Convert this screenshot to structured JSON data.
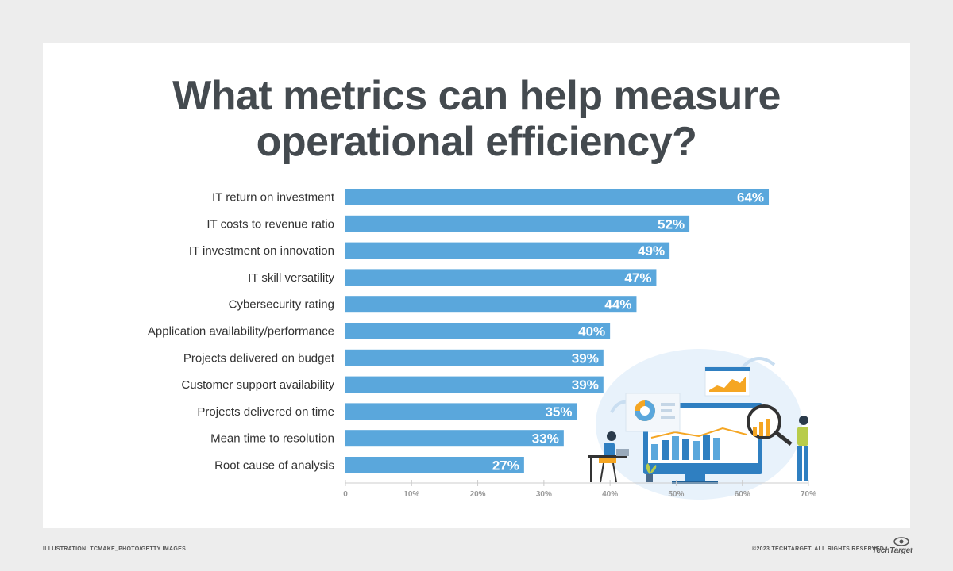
{
  "title_line1": "What metrics can help measure",
  "title_line2": "operational efficiency?",
  "footer": {
    "credit": "ILLUSTRATION: TCMAKE_PHOTO/GETTY IMAGES",
    "copyright": "©2023 TECHTARGET. ALL RIGHTS RESERVED",
    "logo": "TechTarget"
  },
  "colors": {
    "bar": "#5aa7dc",
    "title": "#444a4f",
    "label": "#333333",
    "axis": "#999999",
    "value_label": "#ffffff"
  },
  "chart_data": {
    "type": "bar",
    "orientation": "horizontal",
    "categories": [
      "IT return on investment",
      "IT costs to revenue ratio",
      "IT investment on innovation",
      "IT skill versatility",
      "Cybersecurity rating",
      "Application availability/performance",
      "Projects delivered on budget",
      "Customer support availability",
      "Projects delivered on time",
      "Mean time to resolution",
      "Root cause of analysis"
    ],
    "values": [
      64,
      52,
      49,
      47,
      44,
      40,
      39,
      39,
      35,
      33,
      27
    ],
    "value_labels": [
      "64%",
      "52%",
      "49%",
      "47%",
      "44%",
      "40%",
      "39%",
      "39%",
      "35%",
      "33%",
      "27%"
    ],
    "xlim": [
      0,
      70
    ],
    "xticks": [
      0,
      10,
      20,
      30,
      40,
      50,
      60,
      70
    ],
    "xtick_labels": [
      "0",
      "10%",
      "20%",
      "30%",
      "40%",
      "50%",
      "60%",
      "70%"
    ],
    "grid": false,
    "legend": "none"
  }
}
